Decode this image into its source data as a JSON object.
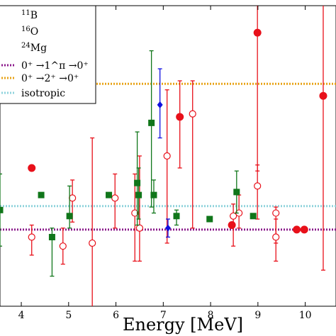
{
  "chart_data": {
    "type": "scatter",
    "xlabel": "Energy [MeV]",
    "xlim": [
      3.55,
      10.65
    ],
    "ylim": [
      0.0,
      1.0
    ],
    "xticks": [
      4,
      5,
      6,
      7,
      8,
      9,
      10
    ],
    "grid": false,
    "legend_placement": "top-left",
    "legend": {
      "entries": [
        {
          "label_base": "B",
          "label_mass": "11",
          "kind": "marker"
        },
        {
          "label_base": "O",
          "label_mass": "16",
          "kind": "marker"
        },
        {
          "label_base": "Mg",
          "label_mass": "24",
          "kind": "marker"
        },
        {
          "label": "0⁺ →1^π →0⁺",
          "kind": "line",
          "color": "#8b1a8b"
        },
        {
          "label": "0⁺ →2⁺ →0⁺",
          "kind": "line",
          "color": "#e8a317"
        },
        {
          "label": "isotropic",
          "kind": "line",
          "color": "#8fd3dc"
        }
      ]
    },
    "reference_lines": [
      {
        "name": "0⁺ →1^π →0⁺",
        "y": 0.255,
        "color": "#8b1a8b"
      },
      {
        "name": "0⁺ →2⁺ →0⁺",
        "y": 0.74,
        "color": "#e8a317"
      },
      {
        "name": "isotropic",
        "y": 0.333,
        "color": "#8fd3dc"
      }
    ],
    "series": [
      {
        "color": "#e8101a",
        "marker": "filled-circle",
        "points": [
          {
            "x": 4.22,
            "y": 0.46,
            "ylo": 0.46,
            "yhi": 0.46
          },
          {
            "x": 7.35,
            "y": 0.63,
            "ylo": 0.46,
            "yhi": 0.75
          },
          {
            "x": 8.45,
            "y": 0.27,
            "ylo": 0.27,
            "yhi": 0.27
          },
          {
            "x": 8.99,
            "y": 0.91,
            "ylo": 0.45,
            "yhi": 1.2
          },
          {
            "x": 9.82,
            "y": 0.255,
            "ylo": 0.255,
            "yhi": 0.255
          },
          {
            "x": 9.98,
            "y": 0.255,
            "ylo": 0.255,
            "yhi": 0.255
          },
          {
            "x": 10.38,
            "y": 0.7,
            "ylo": 0.12,
            "yhi": 1.2
          }
        ]
      },
      {
        "color": "#e8101a",
        "marker": "open-circle",
        "points": [
          {
            "x": 4.22,
            "y": 0.23,
            "ylo": 0.17,
            "yhi": 0.27
          },
          {
            "x": 4.88,
            "y": 0.2,
            "ylo": 0.14,
            "yhi": 0.26
          },
          {
            "x": 5.08,
            "y": 0.36,
            "ylo": 0.28,
            "yhi": 0.42
          },
          {
            "x": 5.5,
            "y": 0.21,
            "ylo": -0.1,
            "yhi": 0.56
          },
          {
            "x": 5.98,
            "y": 0.36,
            "ylo": 0.26,
            "yhi": 0.44
          },
          {
            "x": 6.4,
            "y": 0.31,
            "ylo": 0.15,
            "yhi": 0.44
          },
          {
            "x": 6.5,
            "y": 0.26,
            "ylo": 0.15,
            "yhi": 0.5
          },
          {
            "x": 7.08,
            "y": 0.5,
            "ylo": 0.21,
            "yhi": 0.72
          },
          {
            "x": 7.62,
            "y": 0.64,
            "ylo": 0.26,
            "yhi": 0.75
          },
          {
            "x": 8.48,
            "y": 0.3,
            "ylo": 0.2,
            "yhi": 0.34
          },
          {
            "x": 8.6,
            "y": 0.31,
            "ylo": 0.26,
            "yhi": 0.37
          },
          {
            "x": 8.99,
            "y": 0.4,
            "ylo": 0.29,
            "yhi": 0.47
          },
          {
            "x": 9.38,
            "y": 0.31,
            "ylo": 0.21,
            "yhi": 0.33
          },
          {
            "x": 9.38,
            "y": 0.23,
            "ylo": 0.15,
            "yhi": 0.29
          }
        ]
      },
      {
        "color": "#10761a",
        "marker": "filled-square",
        "points": [
          {
            "x": 3.55,
            "y": 0.32,
            "ylo": 0.2,
            "yhi": 0.44
          },
          {
            "x": 4.42,
            "y": 0.37,
            "ylo": 0.37,
            "yhi": 0.37
          },
          {
            "x": 4.65,
            "y": 0.23,
            "ylo": 0.1,
            "yhi": 0.26
          },
          {
            "x": 5.02,
            "y": 0.3,
            "ylo": 0.26,
            "yhi": 0.4
          },
          {
            "x": 5.85,
            "y": 0.37,
            "ylo": 0.37,
            "yhi": 0.37
          },
          {
            "x": 6.45,
            "y": 0.41,
            "ylo": 0.27,
            "yhi": 0.58
          },
          {
            "x": 6.48,
            "y": 0.37,
            "ylo": 0.29,
            "yhi": 0.46
          },
          {
            "x": 6.75,
            "y": 0.61,
            "ylo": 0.33,
            "yhi": 0.85
          },
          {
            "x": 6.8,
            "y": 0.37,
            "ylo": 0.31,
            "yhi": 0.42
          },
          {
            "x": 7.28,
            "y": 0.3,
            "ylo": 0.27,
            "yhi": 0.32
          },
          {
            "x": 7.98,
            "y": 0.29,
            "ylo": 0.29,
            "yhi": 0.29
          },
          {
            "x": 8.55,
            "y": 0.38,
            "ylo": 0.31,
            "yhi": 0.45
          },
          {
            "x": 8.9,
            "y": 0.3,
            "ylo": 0.3,
            "yhi": 0.3
          }
        ]
      },
      {
        "color": "#1010e0",
        "marker": "filled-diamond",
        "points": [
          {
            "x": 6.93,
            "y": 0.67,
            "ylo": 0.56,
            "yhi": 0.79
          },
          {
            "x": 7.1,
            "y": 0.26,
            "ylo": 0.23,
            "yhi": 0.29
          }
        ]
      }
    ]
  }
}
